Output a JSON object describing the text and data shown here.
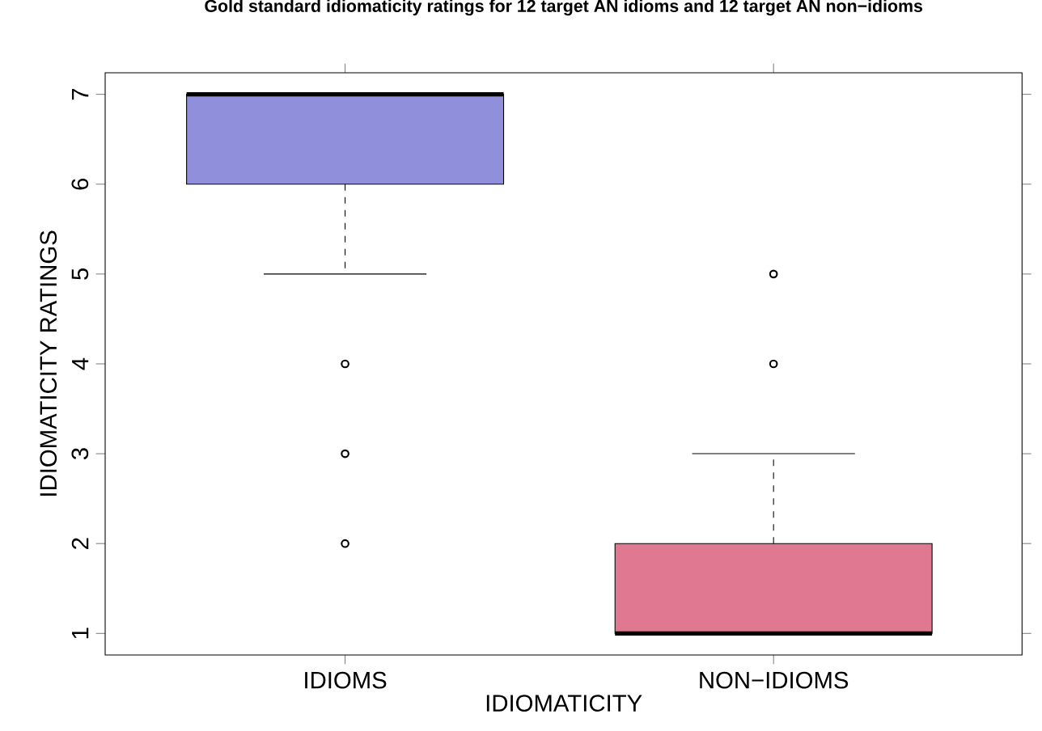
{
  "chart_data": {
    "type": "box",
    "title": "Gold standard idiomaticity ratings for 12 target AN idioms and 12 target AN non−idioms",
    "xlabel": "IDIOMATICITY",
    "ylabel": "IDIOMATICITY RATINGS",
    "categories": [
      "IDIOMS",
      "NON−IDIOMS"
    ],
    "colors": [
      "#8f8fdb",
      "#e07892"
    ],
    "boxes": [
      {
        "low": 5,
        "q1": 6,
        "median": 7,
        "q3": 7,
        "high": 7,
        "outliers": [
          4,
          3,
          2
        ]
      },
      {
        "low": 1,
        "q1": 1,
        "median": 1,
        "q3": 2,
        "high": 3,
        "outliers": [
          4,
          5
        ]
      }
    ],
    "ylim": [
      0.76,
      7.24
    ],
    "yticks": [
      1,
      2,
      3,
      4,
      5,
      6,
      7
    ]
  }
}
